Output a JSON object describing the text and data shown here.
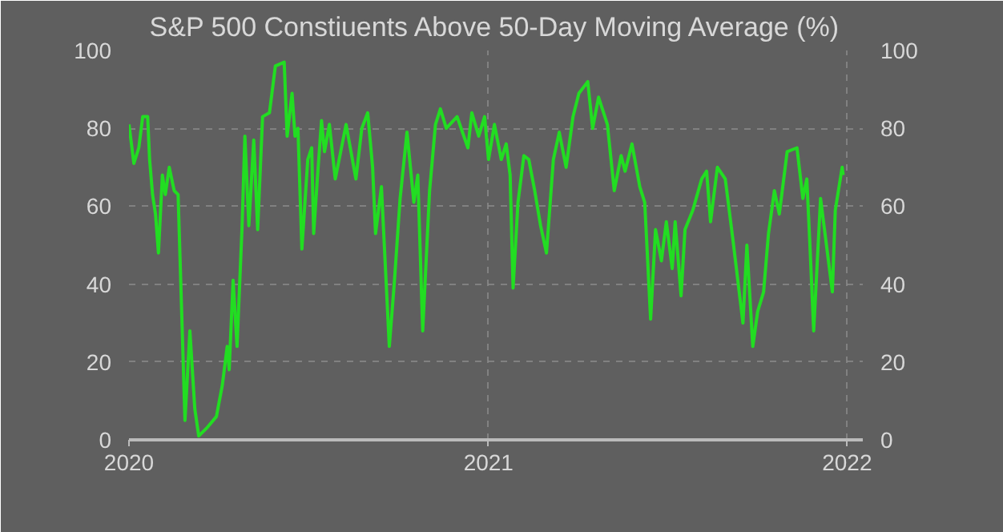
{
  "chart_data": {
    "type": "line",
    "title": "S&P 500 Constiuents Above 50-Day Moving Average (%)",
    "x": [
      "2020-01-01",
      "2020-01-06",
      "2020-01-11",
      "2020-01-15",
      "2020-01-20",
      "2020-01-22",
      "2020-01-25",
      "2020-01-28",
      "2020-01-31",
      "2020-02-04",
      "2020-02-07",
      "2020-02-11",
      "2020-02-16",
      "2020-02-20",
      "2020-02-27",
      "2020-03-03",
      "2020-03-08",
      "2020-03-12",
      "2020-03-20",
      "2020-03-30",
      "2020-04-05",
      "2020-04-10",
      "2020-04-12",
      "2020-04-16",
      "2020-04-20",
      "2020-04-25",
      "2020-04-28",
      "2020-05-02",
      "2020-05-07",
      "2020-05-11",
      "2020-05-16",
      "2020-05-23",
      "2020-05-29",
      "2020-06-07",
      "2020-06-10",
      "2020-06-15",
      "2020-06-18",
      "2020-06-21",
      "2020-06-25",
      "2020-07-01",
      "2020-07-05",
      "2020-07-07",
      "2020-07-11",
      "2020-07-15",
      "2020-07-18",
      "2020-07-23",
      "2020-07-29",
      "2020-08-09",
      "2020-08-19",
      "2020-08-25",
      "2020-08-31",
      "2020-09-05",
      "2020-09-08",
      "2020-09-14",
      "2020-09-22",
      "2020-09-27",
      "2020-10-03",
      "2020-10-10",
      "2020-10-17",
      "2020-10-21",
      "2020-10-26",
      "2020-11-02",
      "2020-11-08",
      "2020-11-13",
      "2020-11-19",
      "2020-11-30",
      "2020-12-11",
      "2020-12-15",
      "2020-12-22",
      "2020-12-28",
      "2021-01-01",
      "2021-01-07",
      "2021-01-14",
      "2021-01-19",
      "2021-01-23",
      "2021-01-26",
      "2021-01-31",
      "2021-02-06",
      "2021-02-11",
      "2021-02-17",
      "2021-02-23",
      "2021-03-01",
      "2021-03-08",
      "2021-03-14",
      "2021-03-21",
      "2021-03-28",
      "2021-04-03",
      "2021-04-12",
      "2021-04-17",
      "2021-04-23",
      "2021-05-02",
      "2021-05-09",
      "2021-05-16",
      "2021-05-20",
      "2021-05-27",
      "2021-06-04",
      "2021-06-09",
      "2021-06-15",
      "2021-06-20",
      "2021-06-26",
      "2021-07-01",
      "2021-07-07",
      "2021-07-10",
      "2021-07-16",
      "2021-07-20",
      "2021-07-28",
      "2021-08-06",
      "2021-08-11",
      "2021-08-15",
      "2021-08-22",
      "2021-08-30",
      "2021-09-07",
      "2021-09-17",
      "2021-09-21",
      "2021-09-27",
      "2021-10-02",
      "2021-10-08",
      "2021-10-13",
      "2021-10-19",
      "2021-10-24",
      "2021-11-01",
      "2021-11-11",
      "2021-11-17",
      "2021-11-21",
      "2021-11-24",
      "2021-11-28",
      "2021-12-05",
      "2021-12-11",
      "2021-12-17",
      "2021-12-20",
      "2021-12-27",
      "2021-12-28"
    ],
    "series": [
      {
        "color": "#22dd22",
        "values": [
          81,
          71,
          75,
          83,
          83,
          72,
          63,
          58,
          48,
          68,
          63,
          70,
          64,
          63,
          5,
          28,
          8,
          1,
          3,
          6,
          14,
          24,
          18,
          41,
          24,
          54,
          78,
          55,
          77,
          54,
          83,
          84,
          96,
          97,
          78,
          89,
          78,
          80,
          49,
          72,
          75,
          53,
          68,
          82,
          74,
          81,
          67,
          81,
          67,
          80,
          84,
          70,
          53,
          65,
          24,
          40,
          62,
          79,
          61,
          68,
          28,
          64,
          81,
          85,
          80,
          83,
          75,
          84,
          78,
          83,
          72,
          81,
          72,
          76,
          68,
          39,
          61,
          73,
          72,
          64,
          55,
          48,
          72,
          79,
          70,
          83,
          89,
          92,
          80,
          88,
          81,
          64,
          73,
          69,
          76,
          65,
          61,
          31,
          54,
          46,
          56,
          44,
          56,
          37,
          54,
          59,
          67,
          69,
          56,
          70,
          67,
          51,
          30,
          50,
          24,
          33,
          38,
          53,
          64,
          58,
          74,
          75,
          62,
          67,
          51,
          28,
          62,
          50,
          38,
          59,
          70,
          68
        ]
      }
    ],
    "xlim": [
      "2020-01-01",
      "2022-01-17"
    ],
    "xticks": [
      {
        "value": "2020-01-01",
        "label": "2020"
      },
      {
        "value": "2021-01-01",
        "label": "2021"
      },
      {
        "value": "2022-01-01",
        "label": "2022"
      }
    ],
    "ylim": [
      0,
      100
    ],
    "yticks": [
      0,
      20,
      40,
      60,
      80,
      100
    ],
    "y2lim": [
      0,
      100
    ],
    "y2ticks": [
      0,
      20,
      40,
      60,
      80,
      100
    ],
    "grid": true,
    "line_style": "solid"
  }
}
